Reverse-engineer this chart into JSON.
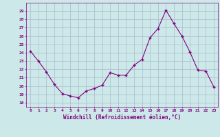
{
  "x": [
    0,
    1,
    2,
    3,
    4,
    5,
    6,
    7,
    8,
    9,
    10,
    11,
    12,
    13,
    14,
    15,
    16,
    17,
    18,
    19,
    20,
    21,
    22,
    23
  ],
  "y": [
    24.2,
    23.0,
    21.7,
    20.2,
    19.1,
    18.8,
    18.6,
    19.4,
    19.7,
    20.1,
    21.6,
    21.3,
    21.3,
    22.5,
    23.2,
    25.8,
    26.9,
    29.1,
    27.5,
    26.0,
    24.1,
    21.9,
    21.8,
    19.9
  ],
  "line_color": "#800080",
  "marker": "+",
  "marker_color": "#800080",
  "bg_color": "#cce8e8",
  "grid_color": "#aabbcc",
  "xlabel": "Windchill (Refroidissement éolien,°C)",
  "xlabel_color": "#800080",
  "tick_color": "#800080",
  "ylim": [
    17.5,
    30
  ],
  "yticks": [
    18,
    19,
    20,
    21,
    22,
    23,
    24,
    25,
    26,
    27,
    28,
    29
  ],
  "xticks": [
    0,
    1,
    2,
    3,
    4,
    5,
    6,
    7,
    8,
    9,
    10,
    11,
    12,
    13,
    14,
    15,
    16,
    17,
    18,
    19,
    20,
    21,
    22,
    23
  ],
  "xlim": [
    -0.5,
    23.5
  ]
}
